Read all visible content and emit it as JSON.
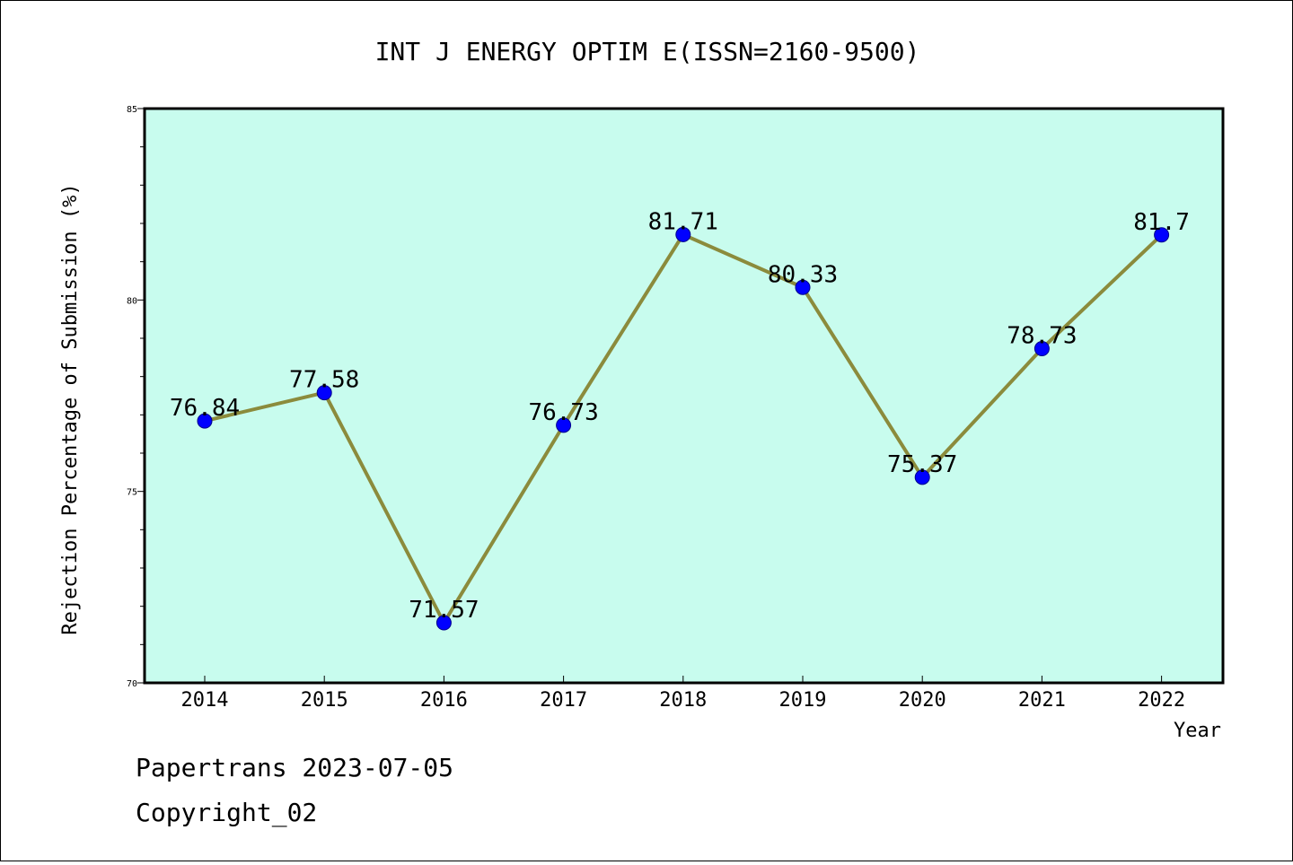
{
  "chart_data": {
    "type": "line",
    "title": "INT J ENERGY OPTIM E(ISSN=2160-9500)",
    "xlabel": "Year",
    "ylabel": "Rejection Percentage of Submission (%)",
    "categories": [
      "2014",
      "2015",
      "2016",
      "2017",
      "2018",
      "2019",
      "2020",
      "2021",
      "2022"
    ],
    "series": [
      {
        "values": [
          76.84,
          77.58,
          71.57,
          76.73,
          81.71,
          80.33,
          75.37,
          78.73,
          81.7
        ],
        "labels": [
          "76.84",
          "77.58",
          "71.57",
          "76.73",
          "81.71",
          "80.33",
          "75.37",
          "78.73",
          "81.7"
        ]
      }
    ],
    "ylim": [
      70,
      85
    ],
    "yticks": [
      "70",
      "75",
      "80",
      "85"
    ],
    "grid": false,
    "colors": {
      "plot_bg": "#c8fcee",
      "line": "#8b8b3c",
      "marker": "#0000ff"
    }
  },
  "footer": {
    "line1": "Papertrans 2023-07-05",
    "line2": "Copyright_02"
  }
}
